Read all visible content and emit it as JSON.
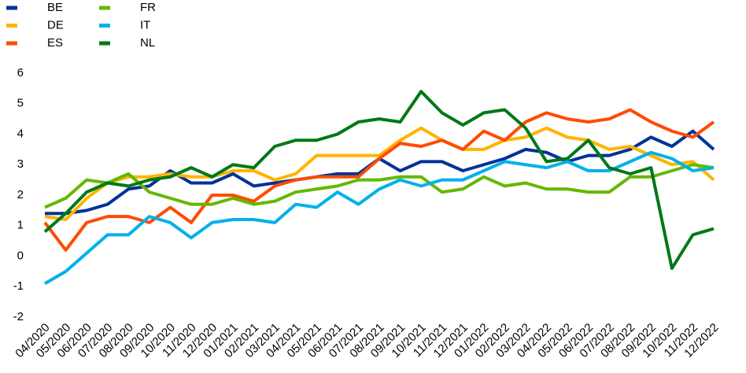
{
  "chart_data": {
    "type": "line",
    "categories": [
      "04/2020",
      "05/2020",
      "06/2020",
      "07/2020",
      "08/2020",
      "09/2020",
      "10/2020",
      "11/2020",
      "12/2020",
      "01/2021",
      "02/2021",
      "03/2021",
      "04/2021",
      "05/2021",
      "06/2021",
      "07/2021",
      "08/2021",
      "09/2021",
      "10/2021",
      "11/2021",
      "12/2021",
      "01/2022",
      "02/2022",
      "03/2022",
      "04/2022",
      "05/2022",
      "06/2022",
      "07/2022",
      "08/2022",
      "09/2022",
      "10/2022",
      "11/2022",
      "12/2022"
    ],
    "series": [
      {
        "name": "BE",
        "color": "#003299",
        "values": [
          1.4,
          1.4,
          1.5,
          1.7,
          2.2,
          2.3,
          2.8,
          2.4,
          2.4,
          2.7,
          2.3,
          2.4,
          2.5,
          2.6,
          2.7,
          2.7,
          3.2,
          2.8,
          3.1,
          3.1,
          2.8,
          3.0,
          3.2,
          3.5,
          3.4,
          3.1,
          3.3,
          3.3,
          3.5,
          3.9,
          3.6,
          4.1,
          3.5
        ]
      },
      {
        "name": "DE",
        "color": "#ffb400",
        "values": [
          1.3,
          1.2,
          1.9,
          2.4,
          2.6,
          2.6,
          2.7,
          2.6,
          2.6,
          2.8,
          2.8,
          2.5,
          2.7,
          3.3,
          3.3,
          3.3,
          3.3,
          3.8,
          4.2,
          3.8,
          3.5,
          3.5,
          3.8,
          3.9,
          4.2,
          3.9,
          3.8,
          3.5,
          3.6,
          3.3,
          3.0,
          3.1,
          2.5
        ]
      },
      {
        "name": "ES",
        "color": "#ff4b00",
        "values": [
          1.1,
          0.2,
          1.1,
          1.3,
          1.3,
          1.1,
          1.6,
          1.1,
          2.0,
          2.0,
          1.8,
          2.3,
          2.5,
          2.6,
          2.6,
          2.6,
          3.2,
          3.7,
          3.6,
          3.8,
          3.5,
          4.1,
          3.8,
          4.4,
          4.7,
          4.5,
          4.4,
          4.5,
          4.8,
          4.4,
          4.1,
          3.9,
          4.4
        ]
      },
      {
        "name": "FR",
        "color": "#65b800",
        "values": [
          1.6,
          1.9,
          2.5,
          2.4,
          2.7,
          2.1,
          1.9,
          1.7,
          1.7,
          1.9,
          1.7,
          1.8,
          2.1,
          2.2,
          2.3,
          2.5,
          2.5,
          2.6,
          2.6,
          2.1,
          2.2,
          2.6,
          2.3,
          2.4,
          2.2,
          2.2,
          2.1,
          2.1,
          2.6,
          2.6,
          2.8,
          3.0,
          2.9
        ]
      },
      {
        "name": "IT",
        "color": "#00b1ea",
        "values": [
          -0.9,
          -0.5,
          0.1,
          0.7,
          0.7,
          1.3,
          1.1,
          0.6,
          1.1,
          1.2,
          1.2,
          1.1,
          1.7,
          1.6,
          2.1,
          1.7,
          2.2,
          2.5,
          2.3,
          2.5,
          2.5,
          2.8,
          3.1,
          3.0,
          2.9,
          3.1,
          2.8,
          2.8,
          3.1,
          3.4,
          3.2,
          2.8,
          2.9
        ]
      },
      {
        "name": "NL",
        "color": "#007816",
        "values": [
          0.8,
          1.4,
          2.1,
          2.4,
          2.3,
          2.5,
          2.6,
          2.9,
          2.6,
          3.0,
          2.9,
          3.6,
          3.8,
          3.8,
          4.0,
          4.4,
          4.5,
          4.4,
          5.4,
          4.7,
          4.3,
          4.7,
          4.8,
          4.2,
          3.1,
          3.2,
          3.8,
          2.9,
          2.7,
          2.9,
          -0.4,
          0.7,
          0.9
        ]
      }
    ],
    "ylim": [
      -2,
      6
    ],
    "yticks": [
      -2,
      -1,
      0,
      1,
      2,
      3,
      4,
      5,
      6
    ],
    "grid": false
  }
}
